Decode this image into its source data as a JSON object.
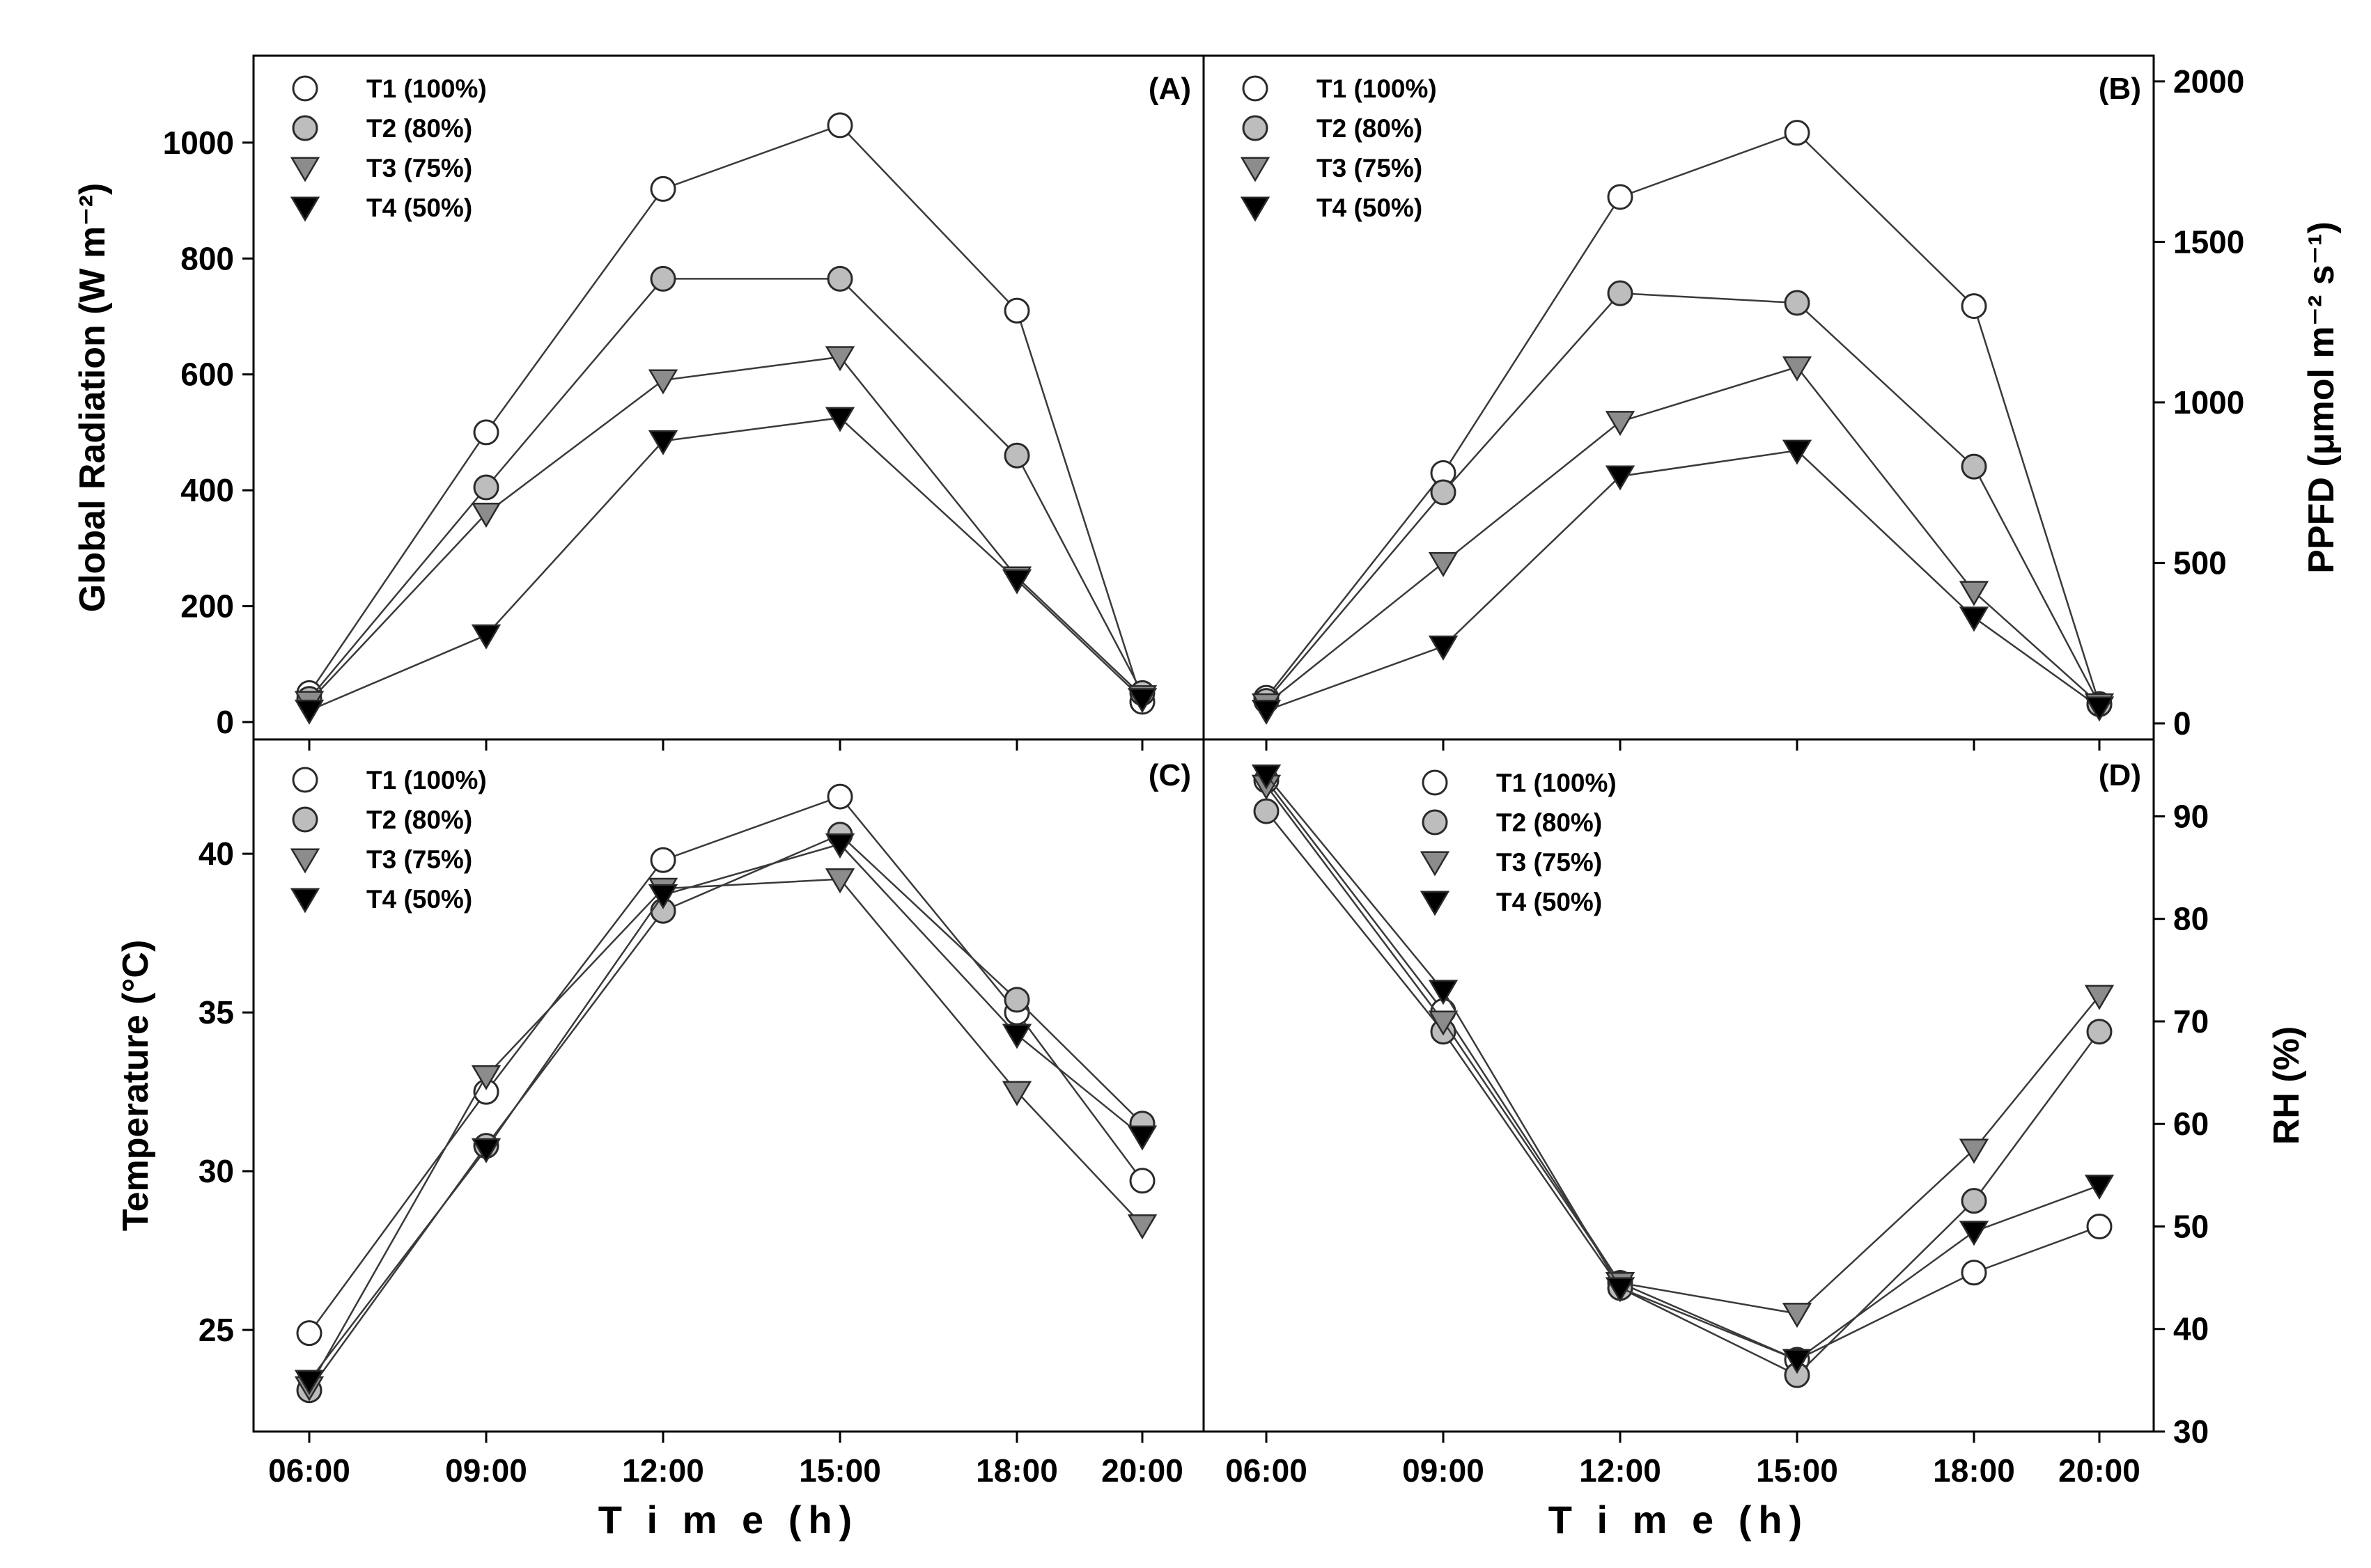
{
  "colors": {
    "T1": "#ffffff",
    "T2": "#bdbdbd",
    "T3": "#8c8c8c",
    "T4": "#000000",
    "marker_edge": "#2a2a2a",
    "line": "#3a3a3a"
  },
  "x_axis": {
    "title": "T i m e  (h)",
    "categories": [
      "06:00",
      "09:00",
      "12:00",
      "15:00",
      "18:00",
      "20:00"
    ]
  },
  "chart_data": [
    {
      "type": "line",
      "panel": "(A)",
      "ylabel": "Global Radiation (W m⁻²)",
      "ylim": [
        -30,
        1150
      ],
      "yticks": [
        0,
        200,
        400,
        600,
        800,
        1000
      ],
      "y_axis_side": "left",
      "legend": "top-left",
      "grid": false,
      "categories": [
        "06:00",
        "09:00",
        "12:00",
        "15:00",
        "18:00",
        "20:00"
      ],
      "series": [
        {
          "name": "T1 (100%)",
          "marker": "circle",
          "values": [
            50,
            500,
            920,
            1030,
            710,
            35
          ]
        },
        {
          "name": "T2 (80%)",
          "marker": "circle",
          "values": [
            40,
            405,
            765,
            765,
            460,
            50
          ]
        },
        {
          "name": "T3 (75%)",
          "marker": "triangle-down",
          "values": [
            35,
            360,
            590,
            630,
            250,
            45
          ]
        },
        {
          "name": "T4 (50%)",
          "marker": "triangle-down",
          "values": [
            20,
            150,
            485,
            525,
            245,
            40
          ]
        }
      ]
    },
    {
      "type": "line",
      "panel": "(B)",
      "ylabel": "PPFD  (μmol m⁻² s⁻¹)",
      "ylim": [
        -50,
        2080
      ],
      "yticks": [
        0,
        500,
        1000,
        1500,
        2000
      ],
      "y_axis_side": "right",
      "legend": "top-left",
      "grid": false,
      "categories": [
        "06:00",
        "09:00",
        "12:00",
        "15:00",
        "18:00",
        "20:00"
      ],
      "series": [
        {
          "name": "T1 (100%)",
          "marker": "circle",
          "values": [
            80,
            780,
            1640,
            1840,
            1300,
            60
          ]
        },
        {
          "name": "T2 (80%)",
          "marker": "circle",
          "values": [
            70,
            720,
            1340,
            1310,
            800,
            60
          ]
        },
        {
          "name": "T3 (75%)",
          "marker": "triangle-down",
          "values": [
            60,
            500,
            940,
            1110,
            410,
            60
          ]
        },
        {
          "name": "T4 (50%)",
          "marker": "triangle-down",
          "values": [
            40,
            240,
            770,
            850,
            330,
            50
          ]
        }
      ]
    },
    {
      "type": "line",
      "panel": "(C)",
      "ylabel": "Temperature (°C)",
      "ylim": [
        21.8,
        43.6
      ],
      "yticks": [
        25,
        30,
        35,
        40
      ],
      "y_axis_side": "left",
      "legend": "top-left",
      "grid": false,
      "categories": [
        "06:00",
        "09:00",
        "12:00",
        "15:00",
        "18:00",
        "20:00"
      ],
      "series": [
        {
          "name": "T1 (100%)",
          "marker": "circle",
          "values": [
            24.9,
            32.5,
            39.8,
            41.8,
            35.0,
            29.7
          ]
        },
        {
          "name": "T2 (80%)",
          "marker": "circle",
          "values": [
            23.1,
            30.8,
            38.2,
            40.6,
            35.4,
            31.5
          ]
        },
        {
          "name": "T3 (75%)",
          "marker": "triangle-down",
          "values": [
            23.2,
            33.0,
            38.9,
            39.2,
            32.5,
            28.3
          ]
        },
        {
          "name": "T4 (50%)",
          "marker": "triangle-down",
          "values": [
            23.4,
            30.7,
            38.7,
            40.3,
            34.3,
            31.1
          ]
        }
      ]
    },
    {
      "type": "line",
      "panel": "(D)",
      "ylabel": "RH (%)",
      "ylim": [
        30,
        97.5
      ],
      "yticks": [
        30,
        40,
        50,
        60,
        70,
        80,
        90
      ],
      "y_axis_side": "right",
      "legend": "top-center",
      "grid": false,
      "categories": [
        "06:00",
        "09:00",
        "12:00",
        "15:00",
        "18:00",
        "20:00"
      ],
      "series": [
        {
          "name": "T1 (100%)",
          "marker": "circle",
          "values": [
            93.5,
            71.0,
            44.5,
            37.0,
            45.5,
            50.0
          ]
        },
        {
          "name": "T2 (80%)",
          "marker": "circle",
          "values": [
            90.5,
            69.0,
            44.0,
            35.5,
            52.5,
            69.0
          ]
        },
        {
          "name": "T3 (75%)",
          "marker": "triangle-down",
          "values": [
            93.0,
            70.0,
            44.5,
            41.5,
            57.5,
            72.5
          ]
        },
        {
          "name": "T4 (50%)",
          "marker": "triangle-down",
          "values": [
            94.0,
            73.0,
            44.0,
            37.0,
            49.5,
            54.0
          ]
        }
      ]
    }
  ]
}
